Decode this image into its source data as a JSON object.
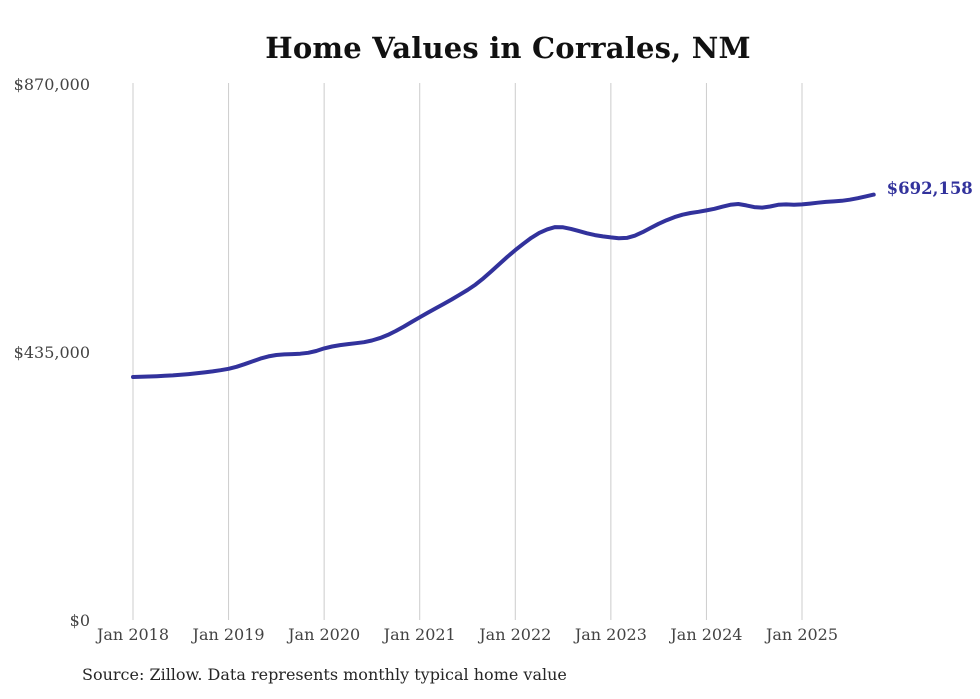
{
  "header": {
    "title": "Home Values in Corrales, NM"
  },
  "footer": {
    "source": "Source: Zillow. Data represents monthly typical home value"
  },
  "colors": {
    "line": "#32329c",
    "end_label": "#32329c",
    "gridline": "#cccccc",
    "axis_text": "#434343",
    "title_text": "#111111",
    "background": "#ffffff"
  },
  "end_label": "$692,158",
  "chart_data": {
    "type": "line",
    "title": "Home Values in Corrales, NM",
    "xlabel": "",
    "ylabel": "",
    "grid": "vertical-only",
    "legend": "none",
    "ylim": [
      0,
      870000
    ],
    "y_ticks": [
      {
        "label": "$870,000",
        "value": 870000
      },
      {
        "label": "$435,000",
        "value": 435000
      },
      {
        "label": "$0",
        "value": 0
      }
    ],
    "x_tick_labels": [
      "Jan 2018",
      "Jan 2019",
      "Jan 2020",
      "Jan 2021",
      "Jan 2022",
      "Jan 2023",
      "Jan 2024",
      "Jan 2025"
    ],
    "x_cadence": "monthly",
    "x_start_month": "2018-01",
    "x_end_month": "2025-10",
    "end_point_label": "$692,158",
    "series": [
      {
        "name": "Typical home value",
        "color": "#32329c",
        "values": [
          396000,
          396300,
          396800,
          397400,
          398000,
          398700,
          399600,
          400700,
          402000,
          403500,
          405200,
          407100,
          409300,
          412600,
          416800,
          421400,
          425900,
          429500,
          431700,
          432700,
          433200,
          433800,
          435300,
          438300,
          442500,
          445500,
          447800,
          449500,
          450900,
          452600,
          455300,
          459200,
          464400,
          470700,
          477900,
          485400,
          493000,
          500200,
          507400,
          514600,
          521800,
          529400,
          537300,
          546100,
          556300,
          567700,
          579500,
          591000,
          602000,
          612300,
          621900,
          629900,
          635700,
          639300,
          639100,
          636500,
          632900,
          629300,
          626300,
          624200,
          622700,
          621400,
          621900,
          625400,
          631200,
          638000,
          644700,
          650600,
          655600,
          659500,
          662300,
          664200,
          666500,
          669000,
          672500,
          675500,
          676800,
          674500,
          671800,
          671000,
          672800,
          675500,
          676200,
          675600,
          676200,
          677500,
          679000,
          680300,
          681000,
          682100,
          683900,
          686300,
          689200,
          692158
        ]
      }
    ]
  }
}
